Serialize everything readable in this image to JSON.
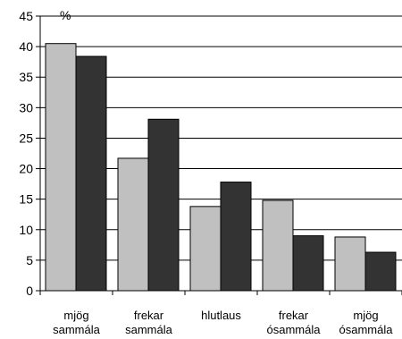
{
  "chart_data": {
    "type": "bar",
    "ylabel": "%",
    "ylim": [
      0,
      45
    ],
    "yticks": [
      0,
      5,
      10,
      15,
      20,
      25,
      30,
      35,
      40,
      45
    ],
    "grid": true,
    "categories": [
      [
        "mjög",
        "sammála"
      ],
      [
        "frekar",
        "sammála"
      ],
      [
        "hlutlaus"
      ],
      [
        "frekar",
        "ósammála"
      ],
      [
        "mjög",
        "ósammála"
      ]
    ],
    "series": [
      {
        "values": [
          40.5,
          21.7,
          13.8,
          14.8,
          8.8
        ],
        "color": "#c0c0c0"
      },
      {
        "values": [
          38.4,
          28.1,
          17.8,
          9.0,
          6.3
        ],
        "color": "#333333"
      }
    ]
  }
}
